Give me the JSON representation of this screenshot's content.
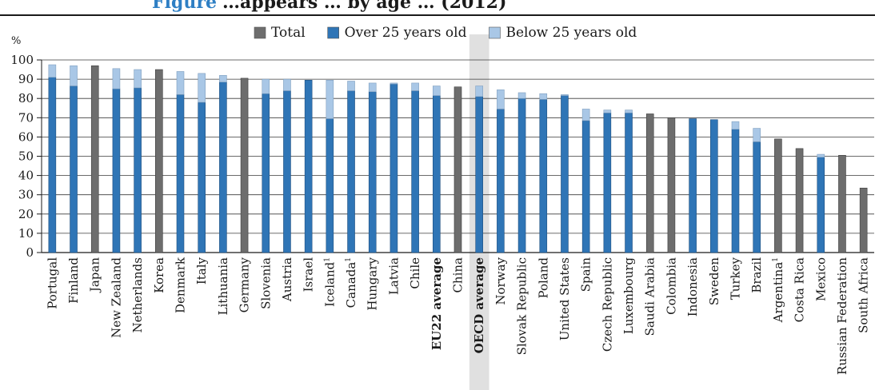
{
  "title": {
    "prefix": "Figure",
    "main": "…appears … by age … (2012)"
  },
  "chart_data": {
    "type": "bar",
    "stacked": true,
    "ylabel": "%",
    "ylim": [
      0,
      100
    ],
    "yticks": [
      0,
      10,
      20,
      30,
      40,
      50,
      60,
      70,
      80,
      90,
      100
    ],
    "grid": true,
    "legend_position": "top-center",
    "highlighted_category": "OECD average",
    "bold_categories": [
      "EU22 average",
      "OECD average"
    ],
    "colors": {
      "total": "#6d6d6d",
      "over25": "#2f75b6",
      "below25": "#a9c7e6",
      "highlight": "#e0e0e0",
      "bar_edge": "#1f4f7f"
    },
    "legend": [
      {
        "key": "total",
        "label": "Total"
      },
      {
        "key": "over25",
        "label": "Over 25 years old"
      },
      {
        "key": "below25",
        "label": "Below 25 years old"
      }
    ],
    "categories": [
      {
        "label": "Portugal",
        "over25": 91,
        "below25": 6.5
      },
      {
        "label": "Finland",
        "over25": 86.5,
        "below25": 10.5
      },
      {
        "label": "Japan",
        "total": 97
      },
      {
        "label": "New Zealand",
        "over25": 85,
        "below25": 10.5
      },
      {
        "label": "Netherlands",
        "over25": 85.5,
        "below25": 9.5
      },
      {
        "label": "Korea",
        "total": 95
      },
      {
        "label": "Denmark",
        "over25": 82,
        "below25": 12
      },
      {
        "label": "Italy",
        "over25": 78,
        "below25": 15
      },
      {
        "label": "Lithuania",
        "over25": 88.5,
        "below25": 3.5
      },
      {
        "label": "Germany",
        "total": 90.5
      },
      {
        "label": "Slovenia",
        "over25": 82.5,
        "below25": 7.5
      },
      {
        "label": "Austria",
        "over25": 84,
        "below25": 6
      },
      {
        "label": "Israel",
        "over25": 89.5,
        "below25": 0
      },
      {
        "label": "Iceland",
        "sup": "1",
        "over25": 69.5,
        "below25": 20
      },
      {
        "label": "Canada",
        "sup": "1",
        "over25": 84,
        "below25": 5
      },
      {
        "label": "Hungary",
        "over25": 83.5,
        "below25": 4.5
      },
      {
        "label": "Latvia",
        "over25": 87.5,
        "below25": 0.5
      },
      {
        "label": "Chile",
        "over25": 84,
        "below25": 4
      },
      {
        "label": "EU22 average",
        "over25": 81.5,
        "below25": 5
      },
      {
        "label": "China",
        "total": 86
      },
      {
        "label": "OECD average",
        "over25": 81,
        "below25": 5.5
      },
      {
        "label": "Norway",
        "over25": 74.5,
        "below25": 10
      },
      {
        "label": "Slovak Republic",
        "over25": 80,
        "below25": 3
      },
      {
        "label": "Poland",
        "over25": 79.5,
        "below25": 3
      },
      {
        "label": "United States",
        "over25": 81.5,
        "below25": 0.5
      },
      {
        "label": "Spain",
        "over25": 68.5,
        "below25": 6
      },
      {
        "label": "Czech Republic",
        "over25": 72.5,
        "below25": 1.5
      },
      {
        "label": "Luxembourg",
        "over25": 72.5,
        "below25": 1.5
      },
      {
        "label": "Saudi Arabia",
        "total": 72
      },
      {
        "label": "Colombia",
        "total": 70
      },
      {
        "label": "Indonesia",
        "over25": 69.5,
        "below25": 0
      },
      {
        "label": "Sweden",
        "over25": 69,
        "below25": 0
      },
      {
        "label": "Turkey",
        "over25": 64,
        "below25": 4
      },
      {
        "label": "Brazil",
        "over25": 57.5,
        "below25": 7
      },
      {
        "label": "Argentina",
        "sup": "1",
        "total": 59
      },
      {
        "label": "Costa Rica",
        "total": 54
      },
      {
        "label": "Mexico",
        "over25": 49.5,
        "below25": 1.5
      },
      {
        "label": "Russian Federation",
        "total": 50.5
      },
      {
        "label": "South Africa",
        "total": 33.5
      }
    ]
  }
}
